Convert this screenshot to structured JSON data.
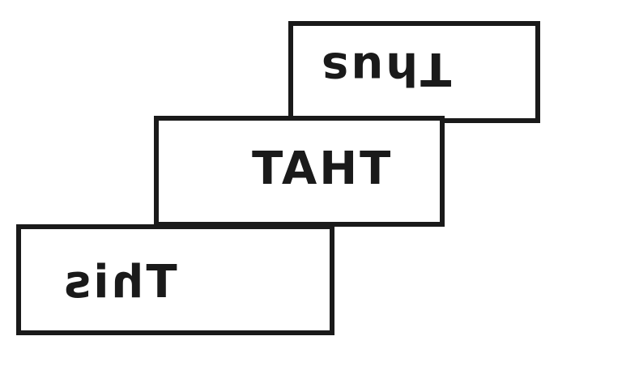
{
  "cards": {
    "top": {
      "text": "Thus",
      "orientation": "rotated-180"
    },
    "middle": {
      "text": "THAT",
      "orientation": "mirrored-horizontal"
    },
    "bottom": {
      "text": "This",
      "orientation": "mirrored-horizontal"
    }
  },
  "colors": {
    "border": "#1a1a1a",
    "text": "#1a1a1a",
    "background": "#ffffff"
  }
}
